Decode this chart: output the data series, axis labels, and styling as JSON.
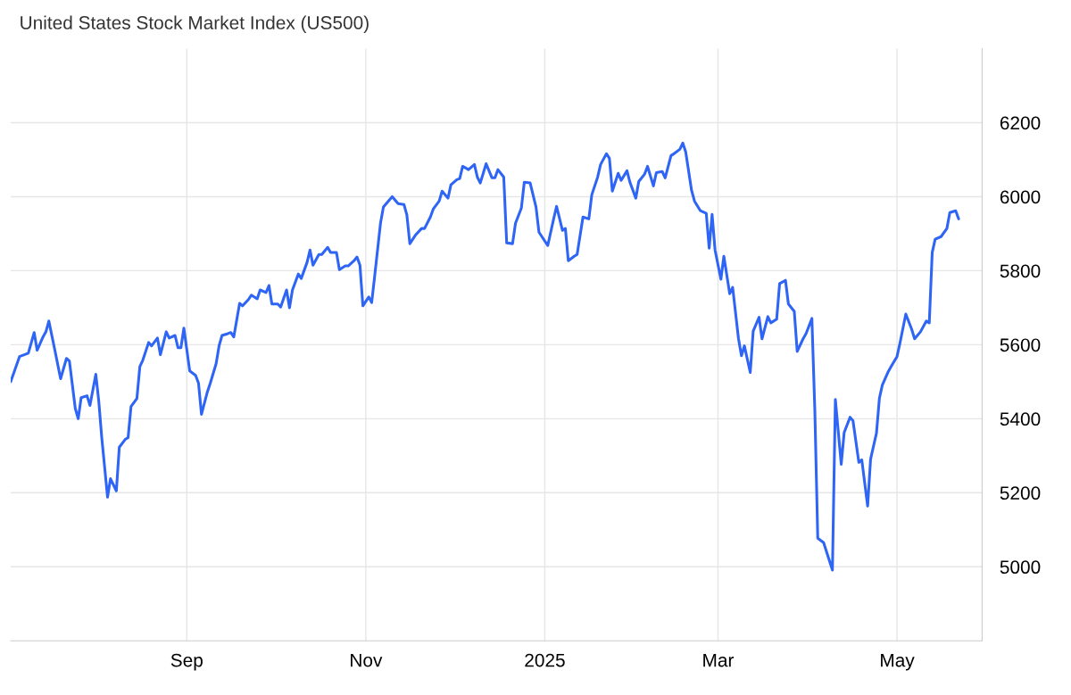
{
  "chart_data": {
    "type": "line",
    "title": "United States Stock Market Index (US500)",
    "xlim": [
      "2024-07-03",
      "2025-05-30"
    ],
    "ylim": [
      4800,
      6400
    ],
    "xticks": [
      {
        "value": "2024-09-01",
        "label": "Sep"
      },
      {
        "value": "2024-11-01",
        "label": "Nov"
      },
      {
        "value": "2025-01-01",
        "label": "2025"
      },
      {
        "value": "2025-03-01",
        "label": "Mar"
      },
      {
        "value": "2025-05-01",
        "label": "May"
      }
    ],
    "yticks": [
      5000,
      5200,
      5400,
      5600,
      5800,
      6000,
      6200
    ],
    "grid": true,
    "series": [
      {
        "color": "#2f65f5",
        "x": [
          "2024-07-03",
          "2024-07-06",
          "2024-07-09",
          "2024-07-11",
          "2024-07-12",
          "2024-07-14",
          "2024-07-15",
          "2024-07-16",
          "2024-07-18",
          "2024-07-20",
          "2024-07-22",
          "2024-07-23",
          "2024-07-25",
          "2024-07-26",
          "2024-07-27",
          "2024-07-29",
          "2024-07-30",
          "2024-08-01",
          "2024-08-02",
          "2024-08-03",
          "2024-08-05",
          "2024-08-06",
          "2024-08-08",
          "2024-08-09",
          "2024-08-11",
          "2024-08-12",
          "2024-08-13",
          "2024-08-15",
          "2024-08-16",
          "2024-08-17",
          "2024-08-19",
          "2024-08-20",
          "2024-08-22",
          "2024-08-23",
          "2024-08-25",
          "2024-08-26",
          "2024-08-28",
          "2024-08-29",
          "2024-08-30",
          "2024-08-31",
          "2024-09-02",
          "2024-09-04",
          "2024-09-05",
          "2024-09-06",
          "2024-09-08",
          "2024-09-09",
          "2024-09-11",
          "2024-09-12",
          "2024-09-13",
          "2024-09-15",
          "2024-09-16",
          "2024-09-17",
          "2024-09-19",
          "2024-09-20",
          "2024-09-22",
          "2024-09-23",
          "2024-09-25",
          "2024-09-26",
          "2024-09-28",
          "2024-09-29",
          "2024-09-30",
          "2024-10-02",
          "2024-10-03",
          "2024-10-05",
          "2024-10-06",
          "2024-10-07",
          "2024-10-09",
          "2024-10-10",
          "2024-10-12",
          "2024-10-13",
          "2024-10-14",
          "2024-10-16",
          "2024-10-17",
          "2024-10-19",
          "2024-10-20",
          "2024-10-22",
          "2024-10-23",
          "2024-10-25",
          "2024-10-26",
          "2024-10-28",
          "2024-10-29",
          "2024-10-30",
          "2024-10-31",
          "2024-11-02",
          "2024-11-03",
          "2024-11-04",
          "2024-11-06",
          "2024-11-07",
          "2024-11-09",
          "2024-11-10",
          "2024-11-12",
          "2024-11-14",
          "2024-11-15",
          "2024-11-16",
          "2024-11-18",
          "2024-11-20",
          "2024-11-21",
          "2024-11-23",
          "2024-11-24",
          "2024-11-26",
          "2024-11-27",
          "2024-11-29",
          "2024-11-30",
          "2024-12-02",
          "2024-12-03",
          "2024-12-04",
          "2024-12-06",
          "2024-12-08",
          "2024-12-09",
          "2024-12-10",
          "2024-12-12",
          "2024-12-14",
          "2024-12-15",
          "2024-12-16",
          "2024-12-18",
          "2024-12-19",
          "2024-12-21",
          "2024-12-22",
          "2024-12-24",
          "2024-12-25",
          "2024-12-27",
          "2024-12-29",
          "2024-12-30",
          "2025-01-01",
          "2025-01-02",
          "2025-01-04",
          "2025-01-05",
          "2025-01-07",
          "2025-01-08",
          "2025-01-09",
          "2025-01-11",
          "2025-01-12",
          "2025-01-14",
          "2025-01-16",
          "2025-01-17",
          "2025-01-19",
          "2025-01-20",
          "2025-01-22",
          "2025-01-23",
          "2025-01-24",
          "2025-01-26",
          "2025-01-27",
          "2025-01-29",
          "2025-01-30",
          "2025-02-01",
          "2025-02-02",
          "2025-02-04",
          "2025-02-05",
          "2025-02-07",
          "2025-02-08",
          "2025-02-10",
          "2025-02-11",
          "2025-02-13",
          "2025-02-14",
          "2025-02-16",
          "2025-02-17",
          "2025-02-18",
          "2025-02-20",
          "2025-02-21",
          "2025-02-23",
          "2025-02-25",
          "2025-02-26",
          "2025-02-27",
          "2025-02-28",
          "2025-03-02",
          "2025-03-03",
          "2025-03-05",
          "2025-03-06",
          "2025-03-08",
          "2025-03-09",
          "2025-03-10",
          "2025-03-12",
          "2025-03-13",
          "2025-03-15",
          "2025-03-16",
          "2025-03-18",
          "2025-03-19",
          "2025-03-21",
          "2025-03-22",
          "2025-03-24",
          "2025-03-25",
          "2025-03-27",
          "2025-03-28",
          "2025-03-30",
          "2025-03-31",
          "2025-04-02",
          "2025-04-03",
          "2025-04-04",
          "2025-04-06",
          "2025-04-09",
          "2025-04-10",
          "2025-04-12",
          "2025-04-13",
          "2025-04-15",
          "2025-04-16",
          "2025-04-18",
          "2025-04-19",
          "2025-04-21",
          "2025-04-22",
          "2025-04-24",
          "2025-04-25",
          "2025-04-26",
          "2025-04-28",
          "2025-04-29",
          "2025-05-01",
          "2025-05-02",
          "2025-05-04",
          "2025-05-06",
          "2025-05-07",
          "2025-05-09",
          "2025-05-11",
          "2025-05-12",
          "2025-05-13",
          "2025-05-14",
          "2025-05-16",
          "2025-05-18",
          "2025-05-19",
          "2025-05-21",
          "2025-05-22"
        ],
        "values": [
          5500,
          5568,
          5577,
          5633,
          5585,
          5621,
          5635,
          5664,
          5587,
          5508,
          5563,
          5556,
          5428,
          5400,
          5457,
          5462,
          5436,
          5520,
          5448,
          5351,
          5188,
          5238,
          5205,
          5323,
          5344,
          5349,
          5433,
          5455,
          5541,
          5558,
          5606,
          5597,
          5618,
          5573,
          5635,
          5618,
          5625,
          5592,
          5592,
          5645,
          5529,
          5517,
          5496,
          5412,
          5472,
          5496,
          5549,
          5597,
          5625,
          5630,
          5633,
          5621,
          5712,
          5705,
          5722,
          5734,
          5724,
          5748,
          5741,
          5760,
          5710,
          5710,
          5702,
          5748,
          5700,
          5748,
          5791,
          5779,
          5823,
          5856,
          5815,
          5844,
          5844,
          5863,
          5849,
          5849,
          5803,
          5813,
          5813,
          5827,
          5837,
          5815,
          5705,
          5729,
          5714,
          5784,
          5928,
          5972,
          5991,
          6000,
          5981,
          5979,
          5950,
          5873,
          5897,
          5914,
          5914,
          5945,
          5967,
          5988,
          6015,
          5996,
          6032,
          6046,
          6049,
          6082,
          6073,
          6087,
          6053,
          6037,
          6089,
          6051,
          6051,
          6073,
          6053,
          5875,
          5873,
          5928,
          5969,
          6039,
          6037,
          5972,
          5904,
          5880,
          5868,
          5940,
          5974,
          5909,
          5914,
          5827,
          5839,
          5844,
          5945,
          5940,
          6005,
          6053,
          6087,
          6116,
          6104,
          6015,
          6063,
          6044,
          6070,
          6039,
          5996,
          6041,
          6061,
          6082,
          6029,
          6065,
          6068,
          6051,
          6111,
          6116,
          6128,
          6145,
          6121,
          6017,
          5988,
          5962,
          5955,
          5861,
          5952,
          5856,
          5777,
          5839,
          5738,
          5755,
          5616,
          5570,
          5597,
          5525,
          5637,
          5674,
          5616,
          5676,
          5659,
          5669,
          5765,
          5774,
          5710,
          5690,
          5582,
          5616,
          5630,
          5671,
          5424,
          5077,
          5065,
          4991,
          5452,
          5277,
          5363,
          5404,
          5395,
          5282,
          5289,
          5164,
          5291,
          5361,
          5455,
          5491,
          5527,
          5541,
          5568,
          5604,
          5683,
          5642,
          5616,
          5635,
          5664,
          5659,
          5849,
          5885,
          5892,
          5914,
          5957,
          5962,
          5940
        ]
      }
    ]
  }
}
